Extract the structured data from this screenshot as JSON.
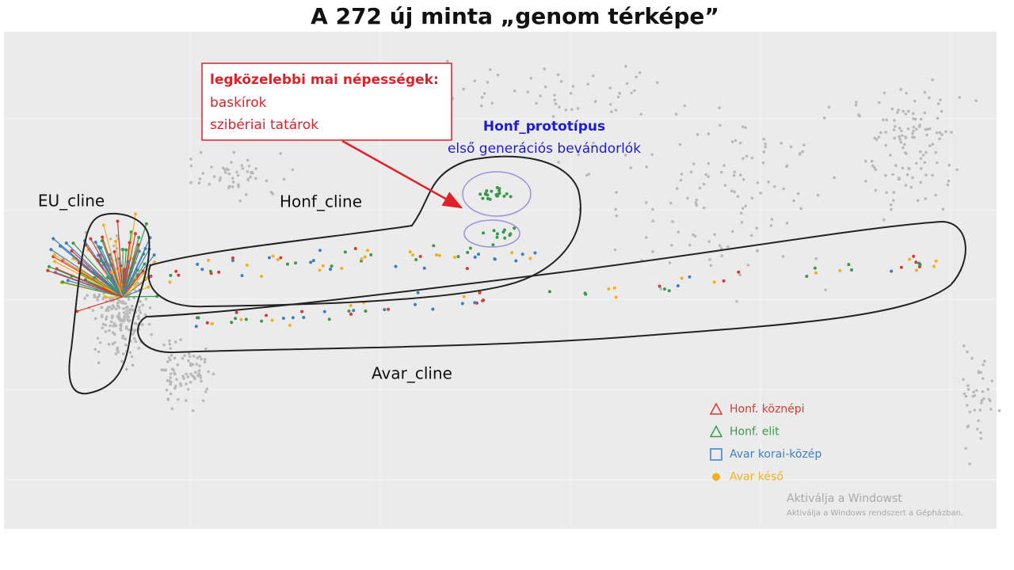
{
  "title": "A 272 új minta „genom térképe”",
  "callout": {
    "heading": "legközelebbi mai népességek:",
    "lines": [
      "baskírok",
      "szibériai tatárok"
    ]
  },
  "prototype": {
    "title": "Honf_prototípus",
    "subtitle": "első generációs bevándorlók"
  },
  "regions": [
    "EU_cline",
    "Honf_cline",
    "Avar_cline"
  ],
  "legend": [
    {
      "label": "Honf. köznépi",
      "color": "#d83a2e",
      "marker": "triangle"
    },
    {
      "label": "Honf. elit",
      "color": "#3a9a4a",
      "marker": "triangle"
    },
    {
      "label": "Avar korai-közép",
      "color": "#3f7fbf",
      "marker": "square"
    },
    {
      "label": "Avar késő",
      "color": "#f0b020",
      "marker": "circle"
    }
  ],
  "watermark": {
    "title": "Aktiválja a Windowst",
    "text": "Aktiválja a Windows rendszert a Gépházban."
  }
}
